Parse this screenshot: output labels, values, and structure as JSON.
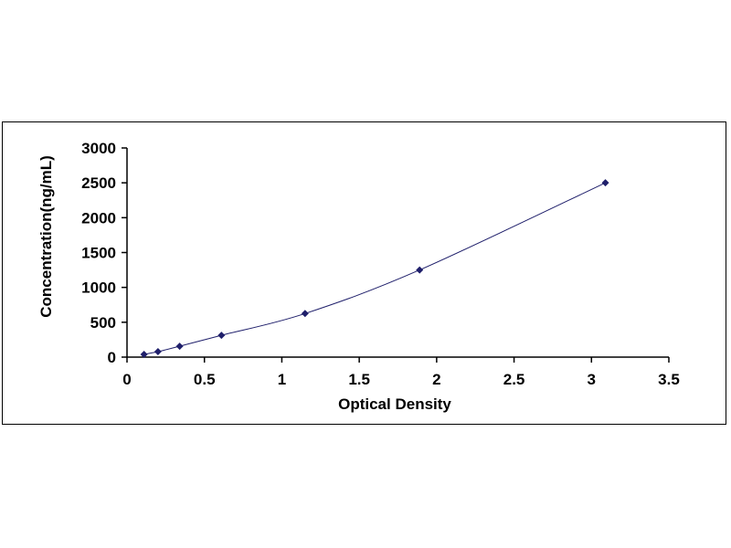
{
  "chart_data": {
    "type": "scatter",
    "title": "",
    "xlabel": "Optical Density",
    "ylabel": "Concentration(ng/mL)",
    "xlim": [
      0,
      3.5
    ],
    "ylim": [
      0,
      3000
    ],
    "x_ticks": [
      "0",
      "0.5",
      "1",
      "1.5",
      "2",
      "2.5",
      "3",
      "3.5"
    ],
    "y_ticks": [
      "0",
      "500",
      "1000",
      "1500",
      "2000",
      "2500",
      "3000"
    ],
    "grid": false,
    "legend": "none",
    "trendline": "smooth",
    "marker": "diamond",
    "series": [
      {
        "x": [
          0.11,
          0.2,
          0.34,
          0.61,
          1.15,
          1.89,
          3.09
        ],
        "y": [
          39,
          78,
          156,
          313,
          625,
          1250,
          2500
        ]
      }
    ],
    "colors": {
      "marker": "#1f1f6b",
      "line": "#1f1f6b",
      "axis": "#000000"
    }
  }
}
